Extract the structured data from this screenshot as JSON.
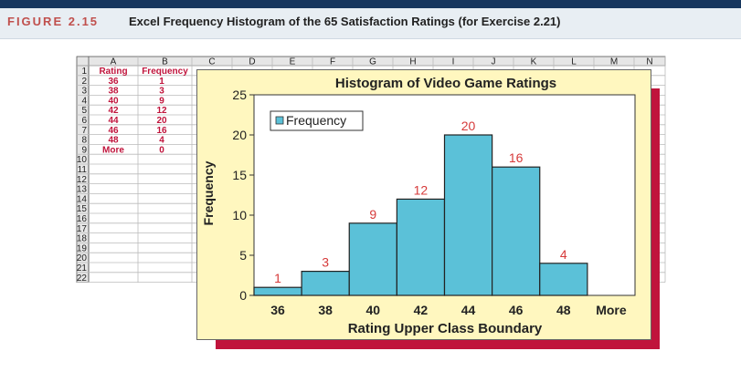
{
  "header": {
    "figure_label": "FIGURE 2.15",
    "caption": "Excel Frequency Histogram of the 65 Satisfaction Ratings (for Exercise 2.21)"
  },
  "sheet": {
    "columns": [
      "A",
      "B",
      "C",
      "D",
      "E",
      "F",
      "G",
      "H",
      "I",
      "J",
      "K",
      "L",
      "M",
      "N"
    ],
    "row_numbers": [
      "1",
      "2",
      "3",
      "4",
      "5",
      "6",
      "7",
      "8",
      "9",
      "10",
      "11",
      "12",
      "13",
      "14",
      "15",
      "16",
      "17",
      "18",
      "19",
      "20",
      "21",
      "22"
    ],
    "headers": [
      "Rating",
      "Frequency"
    ],
    "rows": [
      [
        "36",
        "1"
      ],
      [
        "38",
        "3"
      ],
      [
        "40",
        "9"
      ],
      [
        "42",
        "12"
      ],
      [
        "44",
        "20"
      ],
      [
        "46",
        "16"
      ],
      [
        "48",
        "4"
      ],
      [
        "More",
        "0"
      ]
    ]
  },
  "colors": {
    "bar": "#5bc1d8",
    "accent": "#c0143c",
    "label_red": "#d63a3a",
    "chart_bg": "#fff7bf"
  },
  "chart_data": {
    "type": "bar",
    "title": "Histogram of Video Game Ratings",
    "xlabel": "Rating Upper Class Boundary",
    "ylabel": "Frequency",
    "categories": [
      "36",
      "38",
      "40",
      "42",
      "44",
      "46",
      "48",
      "More"
    ],
    "series": [
      {
        "name": "Frequency",
        "values": [
          1,
          3,
          9,
          12,
          20,
          16,
          4,
          0
        ]
      }
    ],
    "data_labels": [
      "1",
      "3",
      "9",
      "12",
      "20",
      "16",
      "4",
      ""
    ],
    "ylim": [
      0,
      25
    ],
    "yticks": [
      "0",
      "5",
      "10",
      "15",
      "20",
      "25"
    ],
    "legend": "top-left",
    "grid": false
  }
}
